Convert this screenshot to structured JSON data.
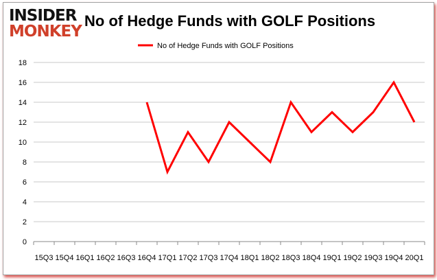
{
  "logo": {
    "line1": "INSIDER",
    "line2": "MONKEY"
  },
  "chart_data": {
    "type": "line",
    "title": "No of Hedge Funds with GOLF Positions",
    "categories": [
      "15Q3",
      "15Q4",
      "16Q1",
      "16Q2",
      "16Q3",
      "16Q4",
      "17Q1",
      "17Q2",
      "17Q3",
      "17Q4",
      "18Q1",
      "18Q2",
      "18Q3",
      "18Q4",
      "19Q1",
      "19Q2",
      "19Q3",
      "19Q4",
      "20Q1"
    ],
    "series": [
      {
        "name": "No of Hedge Funds with GOLF Positions",
        "color": "#ff0000",
        "values": [
          null,
          null,
          null,
          null,
          null,
          14,
          7,
          11,
          8,
          12,
          10,
          8,
          14,
          11,
          13,
          11,
          13,
          16,
          12
        ]
      }
    ],
    "ylim": [
      0,
      18
    ],
    "yticks": [
      0,
      2,
      4,
      6,
      8,
      10,
      12,
      14,
      16,
      18
    ],
    "grid": true,
    "legend": "top-center"
  }
}
